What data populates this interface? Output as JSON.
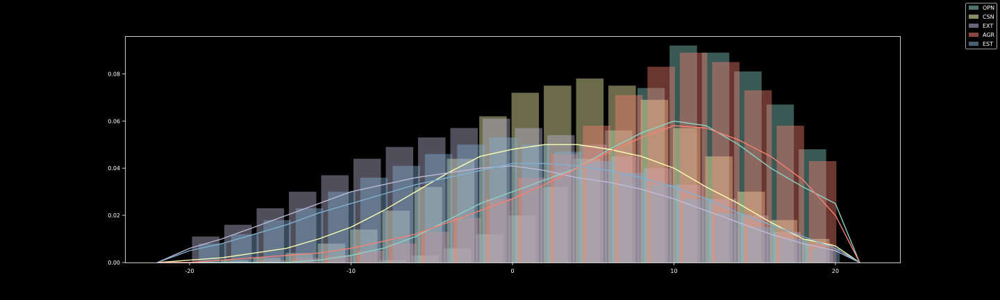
{
  "chart_data": {
    "type": "histogram-kde",
    "title": "",
    "xlabel": "",
    "ylabel": "",
    "xlim": [
      -24,
      24
    ],
    "ylim": [
      0,
      0.096
    ],
    "x_ticks": [
      -20,
      -10,
      0,
      10,
      20
    ],
    "x_tick_labels": [
      "-20",
      "-10",
      "0",
      "10",
      "20"
    ],
    "y_ticks": [
      0.0,
      0.02,
      0.04,
      0.06,
      0.08
    ],
    "y_tick_labels": [
      "0.00",
      "0.02",
      "0.04",
      "0.06",
      "0.08"
    ],
    "grid": false,
    "legend_position": "top-right",
    "bin_centers": [
      -19,
      -17,
      -15,
      -13,
      -11,
      -9,
      -7,
      -5,
      -3,
      -1,
      1,
      3,
      5,
      7,
      9,
      11,
      13,
      15,
      17,
      19
    ],
    "kde_x": [
      -22,
      -20,
      -18,
      -16,
      -14,
      -12,
      -10,
      -8,
      -6,
      -4,
      -2,
      0,
      2,
      4,
      6,
      8,
      10,
      12,
      14,
      16,
      18,
      20,
      21.5
    ],
    "series": [
      {
        "name": "OPN",
        "hist_color": "#8dd3c7",
        "line_color": "#8dd3c7",
        "hist": [
          0,
          0,
          0,
          0,
          0,
          0,
          0.001,
          0.003,
          0.006,
          0.012,
          0.02,
          0.032,
          0.044,
          0.056,
          0.074,
          0.092,
          0.089,
          0.081,
          0.067,
          0.048
        ],
        "kde": [
          0,
          0,
          0,
          0,
          0,
          0.001,
          0.003,
          0.006,
          0.011,
          0.018,
          0.025,
          0.03,
          0.035,
          0.04,
          0.048,
          0.055,
          0.06,
          0.058,
          0.05,
          0.04,
          0.032,
          0.025,
          0
        ]
      },
      {
        "name": "CSN",
        "hist_color": "#ffffb3",
        "line_color": "#ffffb3",
        "hist": [
          0,
          0.001,
          0.002,
          0.004,
          0.008,
          0.014,
          0.022,
          0.032,
          0.044,
          0.062,
          0.072,
          0.075,
          0.078,
          0.075,
          0.069,
          0.057,
          0.045,
          0.03,
          0.018,
          0.01
        ],
        "kde": [
          0,
          0.001,
          0.002,
          0.004,
          0.006,
          0.01,
          0.015,
          0.022,
          0.03,
          0.038,
          0.045,
          0.048,
          0.05,
          0.05,
          0.048,
          0.045,
          0.04,
          0.032,
          0.025,
          0.017,
          0.01,
          0.007,
          0
        ]
      },
      {
        "name": "EXT",
        "hist_color": "#bebada",
        "line_color": "#bebada",
        "hist": [
          0.011,
          0.016,
          0.023,
          0.03,
          0.037,
          0.044,
          0.049,
          0.053,
          0.057,
          0.061,
          0.057,
          0.054,
          0.05,
          0.045,
          0.04,
          0.033,
          0.027,
          0.02,
          0.013,
          0.008
        ],
        "kde": [
          0,
          0.006,
          0.01,
          0.015,
          0.02,
          0.025,
          0.03,
          0.033,
          0.036,
          0.038,
          0.04,
          0.041,
          0.039,
          0.036,
          0.034,
          0.031,
          0.027,
          0.022,
          0.017,
          0.012,
          0.008,
          0.005,
          0
        ]
      },
      {
        "name": "AGR",
        "hist_color": "#fb8072",
        "line_color": "#fb8072",
        "hist": [
          0,
          0,
          0.001,
          0.002,
          0.003,
          0.005,
          0.008,
          0.013,
          0.019,
          0.027,
          0.036,
          0.046,
          0.058,
          0.071,
          0.083,
          0.089,
          0.085,
          0.073,
          0.058,
          0.043
        ],
        "kde": [
          0,
          0,
          0.001,
          0.002,
          0.003,
          0.004,
          0.006,
          0.009,
          0.012,
          0.017,
          0.022,
          0.027,
          0.033,
          0.04,
          0.047,
          0.053,
          0.058,
          0.057,
          0.052,
          0.045,
          0.035,
          0.02,
          0
        ]
      },
      {
        "name": "EST",
        "hist_color": "#80b1d3",
        "line_color": "#80b1d3",
        "hist": [
          0.008,
          0.012,
          0.018,
          0.023,
          0.03,
          0.036,
          0.041,
          0.046,
          0.05,
          0.053,
          0.05,
          0.047,
          0.043,
          0.038,
          0.033,
          0.027,
          0.021,
          0.015,
          0.01,
          0.006
        ],
        "kde": [
          0,
          0.005,
          0.008,
          0.012,
          0.016,
          0.021,
          0.025,
          0.029,
          0.033,
          0.036,
          0.039,
          0.042,
          0.042,
          0.041,
          0.039,
          0.036,
          0.032,
          0.027,
          0.021,
          0.016,
          0.011,
          0.006,
          0
        ]
      }
    ]
  }
}
